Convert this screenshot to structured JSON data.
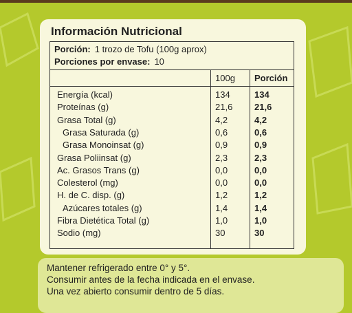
{
  "header": {
    "title": "Información Nutricional"
  },
  "serving": {
    "label": "Porción:",
    "value": "1 trozo de Tofu (100g aprox)"
  },
  "servings_per_pack": {
    "label": "Porciones por envase:",
    "value": "10"
  },
  "table": {
    "headers": [
      "100g",
      "Porción"
    ],
    "rows": [
      [
        "Energía (kcal)",
        "134",
        "134"
      ],
      [
        "Proteínas (g)",
        "21,6",
        "21,6"
      ],
      [
        "Grasa Total (g)",
        "4,2",
        "4,2"
      ],
      [
        "Grasa Saturada (g)",
        "0,6",
        "0,6"
      ],
      [
        "Grasa Monoinsat (g)",
        "0,9",
        "0,9"
      ],
      [
        "Grasa Poliinsat (g)",
        "2,3",
        "2,3"
      ],
      [
        "Ac. Grasos Trans (g)",
        "0,0",
        "0,0"
      ],
      [
        "Colesterol (mg)",
        "0,0",
        "0,0"
      ],
      [
        "H. de C. disp. (g)",
        "1,2",
        "1,2"
      ],
      [
        "Azúcares totales (g)",
        "1,4",
        "1,4"
      ],
      [
        "Fibra Dietética Total (g)",
        "1,0",
        "1,0"
      ],
      [
        "Sodio (mg)",
        "30",
        "30"
      ]
    ]
  },
  "notes": [
    "Mantener refrigerado entre 0° y 5°.",
    "Consumir antes de la fecha indicada en el envase.",
    "Una vez abierto consumir dentro de 5 días."
  ]
}
